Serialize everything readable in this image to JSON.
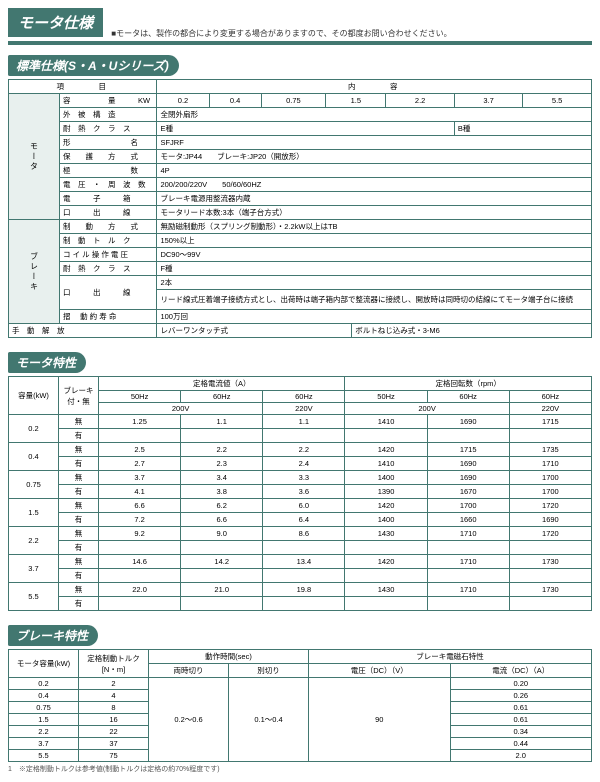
{
  "header": {
    "title": "モータ仕様",
    "note": "■モータは、製作の都合により変更する場合がありますので、その都度お問い合わせください。"
  },
  "section1": {
    "title": "標準仕様(S・A・Uシリーズ)",
    "h_item": "項　　　目",
    "h_content": "内　　　容",
    "rows": {
      "r1_l": "容　　　　　量　　　KW",
      "r1_v1": "0.2",
      "r1_v2": "0.4",
      "r1_v3": "0.75",
      "r1_v4": "1.5",
      "r1_v5": "2.2",
      "r1_v6": "3.7",
      "r1_v7": "5.5",
      "r2_l": "外　被　構　造",
      "r2_v": "全閉外扇形",
      "side_m": "モータ",
      "r3_l": "耐　熱　ク　ラ　ス",
      "r3_v1": "E種",
      "r3_v2": "B種",
      "r4_l": "形　　　　　　　　名",
      "r4_v": "SFJRF",
      "r5_l": "保　　護　　方　　式",
      "r5_v": "モータ:JP44　　ブレーキ:JP20（開放形）",
      "r6_l": "極　　　　　　　　数",
      "r6_v": "4P",
      "r7_l": "電　圧　・　周　波　数",
      "r7_v": "200/200/220V　　50/60/60HZ",
      "r8_l": "電　　　子　　　箱",
      "r8_v": "ブレーキ電源用整流器内蔵",
      "r9_l": "口　　　出　　　線",
      "r9_v": "モータリード本数:3本（端子台方式）",
      "r10_l": "制　　動　　方　　式",
      "r10_v": "無励磁制動形（スプリング制動形）・2.2kW以上はTB",
      "side_b": "ブレーキ",
      "r11_l": "制　動　ト　ル　ク",
      "r11_v": "150%以上",
      "r12_l": "コ イ ル 操 作 電 圧",
      "r12_v": "DC90～99V",
      "r13_l": "耐　熱　ク　ラ　ス",
      "r13_v": "F種",
      "r14_l": "口　　　出　　　線",
      "r14_v1": "2本",
      "r14_v2": "リード線式圧着端子接続方式とし、出荷時は端子箱内部で整流器に接続し、開放時は同時切の結線にてモータ端子台に接続",
      "r15_l": "摺　  動  約   寿   命",
      "r15_v": "100万回",
      "r16_l": "手　動　解　放",
      "r16_v1": "レバーワンタッチ式",
      "r16_v2": "ボルトねじ込み式・3-M6"
    }
  },
  "section2": {
    "title": "モータ特性",
    "h": {
      "cap": "容量(kW)",
      "brk": "ブレーキ\n付・無",
      "cur": "定格電流値（A）",
      "rpm": "定格回転数（rpm）",
      "c50": "50Hz",
      "c601": "60Hz",
      "c602": "60Hz",
      "v200": "200V",
      "v220": "220V"
    },
    "rows": [
      {
        "cap": "0.2",
        "a": "無",
        "v": [
          "1.25",
          "1.1",
          "1.1",
          "1410",
          "1690",
          "1715"
        ]
      },
      {
        "cap": "",
        "a": "有",
        "v": [
          "",
          "",
          "",
          "",
          "",
          ""
        ]
      },
      {
        "cap": "0.4",
        "a": "無",
        "v": [
          "2.5",
          "2.2",
          "2.2",
          "1420",
          "1715",
          "1735"
        ]
      },
      {
        "cap": "",
        "a": "有",
        "v": [
          "2.7",
          "2.3",
          "2.4",
          "1410",
          "1690",
          "1710"
        ]
      },
      {
        "cap": "0.75",
        "a": "無",
        "v": [
          "3.7",
          "3.4",
          "3.3",
          "1400",
          "1690",
          "1700"
        ]
      },
      {
        "cap": "",
        "a": "有",
        "v": [
          "4.1",
          "3.8",
          "3.6",
          "1390",
          "1670",
          "1700"
        ]
      },
      {
        "cap": "1.5",
        "a": "無",
        "v": [
          "6.6",
          "6.2",
          "6.0",
          "1420",
          "1700",
          "1720"
        ]
      },
      {
        "cap": "",
        "a": "有",
        "v": [
          "7.2",
          "6.6",
          "6.4",
          "1400",
          "1660",
          "1690"
        ]
      },
      {
        "cap": "2.2",
        "a": "無",
        "v": [
          "9.2",
          "9.0",
          "8.6",
          "1430",
          "1710",
          "1720"
        ]
      },
      {
        "cap": "",
        "a": "有",
        "v": [
          "",
          "",
          "",
          "",
          "",
          ""
        ]
      },
      {
        "cap": "3.7",
        "a": "無",
        "v": [
          "14.6",
          "14.2",
          "13.4",
          "1420",
          "1710",
          "1730"
        ]
      },
      {
        "cap": "",
        "a": "有",
        "v": [
          "",
          "",
          "",
          "",
          "",
          ""
        ]
      },
      {
        "cap": "5.5",
        "a": "無",
        "v": [
          "22.0",
          "21.0",
          "19.8",
          "1430",
          "1710",
          "1730"
        ]
      },
      {
        "cap": "",
        "a": "有",
        "v": [
          "",
          "",
          "",
          "",
          "",
          ""
        ]
      }
    ]
  },
  "section3": {
    "title": "ブレーキ特性",
    "h": {
      "cap": "モータ容量(kW)",
      "trq": "定格制動トルク\n[N・m]",
      "time": "動作時間(sec)",
      "mag": "ブレーキ電磁石特性",
      "t1": "両時切り",
      "t2": "別切り",
      "v": "電圧（DC）（V）",
      "a": "電流（DC）（A）"
    },
    "rows": [
      {
        "c": "0.2",
        "t": "2",
        "a": "0.20"
      },
      {
        "c": "0.4",
        "t": "4",
        "a": "0.26"
      },
      {
        "c": "0.75",
        "t": "8",
        "a": "0.61"
      },
      {
        "c": "1.5",
        "t": "16",
        "a": "0.61"
      },
      {
        "c": "2.2",
        "t": "22",
        "a": "0.34"
      },
      {
        "c": "3.7",
        "t": "37",
        "a": "0.44"
      },
      {
        "c": "5.5",
        "t": "75",
        "a": "2.0"
      }
    ],
    "m1": "0.2～0.6",
    "m2": "0.1～0.4",
    "m3": "90",
    "footnote": "1　※定格制動トルクは参考値(制動トルクは定格の約70%程度です)"
  }
}
